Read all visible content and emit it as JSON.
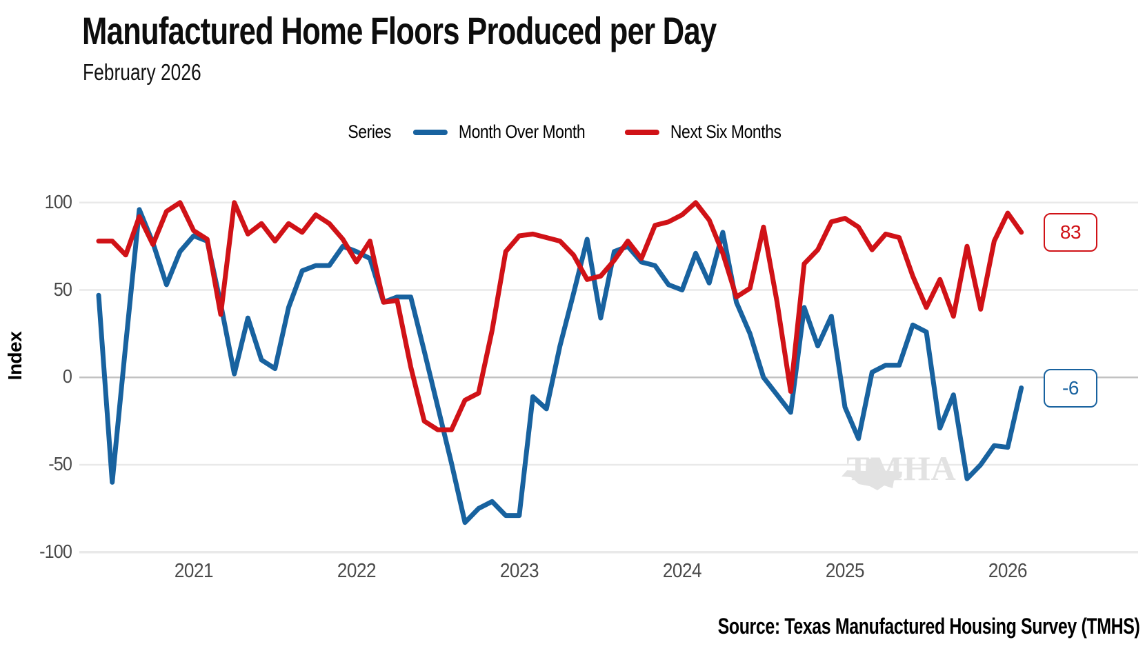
{
  "page": {
    "title": "Manufactured Home Floors Produced per Day",
    "subtitle": "February 2026",
    "source": "Source: Texas Manufactured Housing Survey (TMHS)",
    "watermark": "TMHA"
  },
  "legend": {
    "label": "Series",
    "items": [
      {
        "name": "Month Over Month",
        "color": "#18629f"
      },
      {
        "name": "Next Six Months",
        "color": "#d01217"
      }
    ]
  },
  "annotations": {
    "next_six_months_end_label": "83",
    "month_over_month_end_label": "-6"
  },
  "chart_data": {
    "type": "line",
    "title": "Manufactured Home Floors Produced per Day",
    "subtitle": "February 2026",
    "ylabel": "Index",
    "xlabel": "",
    "ylim": [
      -100,
      100
    ],
    "grid": "horizontal",
    "legend_position": "top",
    "x_start_month": "2020-06",
    "x_end_month": "2026-02",
    "months_per_point": 1,
    "y_ticks": [
      {
        "label": "100",
        "value": 100
      },
      {
        "label": "50",
        "value": 50
      },
      {
        "label": "0",
        "value": 0
      },
      {
        "label": "-50",
        "value": -50
      },
      {
        "label": "-100",
        "value": -100
      }
    ],
    "x_ticks": [
      {
        "label": "2021",
        "month_index": 7
      },
      {
        "label": "2022",
        "month_index": 19
      },
      {
        "label": "2023",
        "month_index": 31
      },
      {
        "label": "2024",
        "month_index": 43
      },
      {
        "label": "2025",
        "month_index": 55
      },
      {
        "label": "2026",
        "month_index": 67
      }
    ],
    "series": [
      {
        "name": "Month Over Month",
        "color": "#18629f",
        "end_label": "-6",
        "values": [
          47,
          -60,
          19,
          96,
          77,
          53,
          72,
          81,
          78,
          42,
          2,
          34,
          10,
          5,
          40,
          61,
          64,
          64,
          75,
          72,
          68,
          43,
          46,
          46,
          15,
          -17,
          -49,
          -83,
          -75,
          -71,
          -79,
          -79,
          -11,
          -18,
          18,
          48,
          79,
          34,
          72,
          75,
          66,
          64,
          53,
          50,
          71,
          54,
          83,
          43,
          25,
          0,
          -10,
          -20,
          40,
          18,
          35,
          -17,
          -35,
          3,
          7,
          7,
          30,
          26,
          -29,
          -10,
          -58,
          -50,
          -39,
          -40,
          -6
        ]
      },
      {
        "name": "Next Six Months",
        "color": "#d01217",
        "end_label": "83",
        "values": [
          78,
          78,
          70,
          92,
          76,
          95,
          100,
          84,
          79,
          36,
          100,
          82,
          88,
          78,
          88,
          83,
          93,
          88,
          79,
          66,
          78,
          43,
          44,
          6,
          -25,
          -30,
          -30,
          -13,
          -9,
          27,
          72,
          81,
          82,
          80,
          78,
          70,
          56,
          58,
          67,
          78,
          68,
          87,
          89,
          93,
          100,
          90,
          71,
          46,
          51,
          86,
          43,
          -8,
          65,
          73,
          89,
          91,
          86,
          73,
          82,
          80,
          58,
          40,
          56,
          35,
          75,
          39,
          78,
          94,
          83
        ]
      }
    ]
  },
  "layout_colors": {
    "grid_light": "#e9e9e9",
    "grid_zero": "#c2c2c2",
    "tick_text": "#4a4a4a"
  }
}
